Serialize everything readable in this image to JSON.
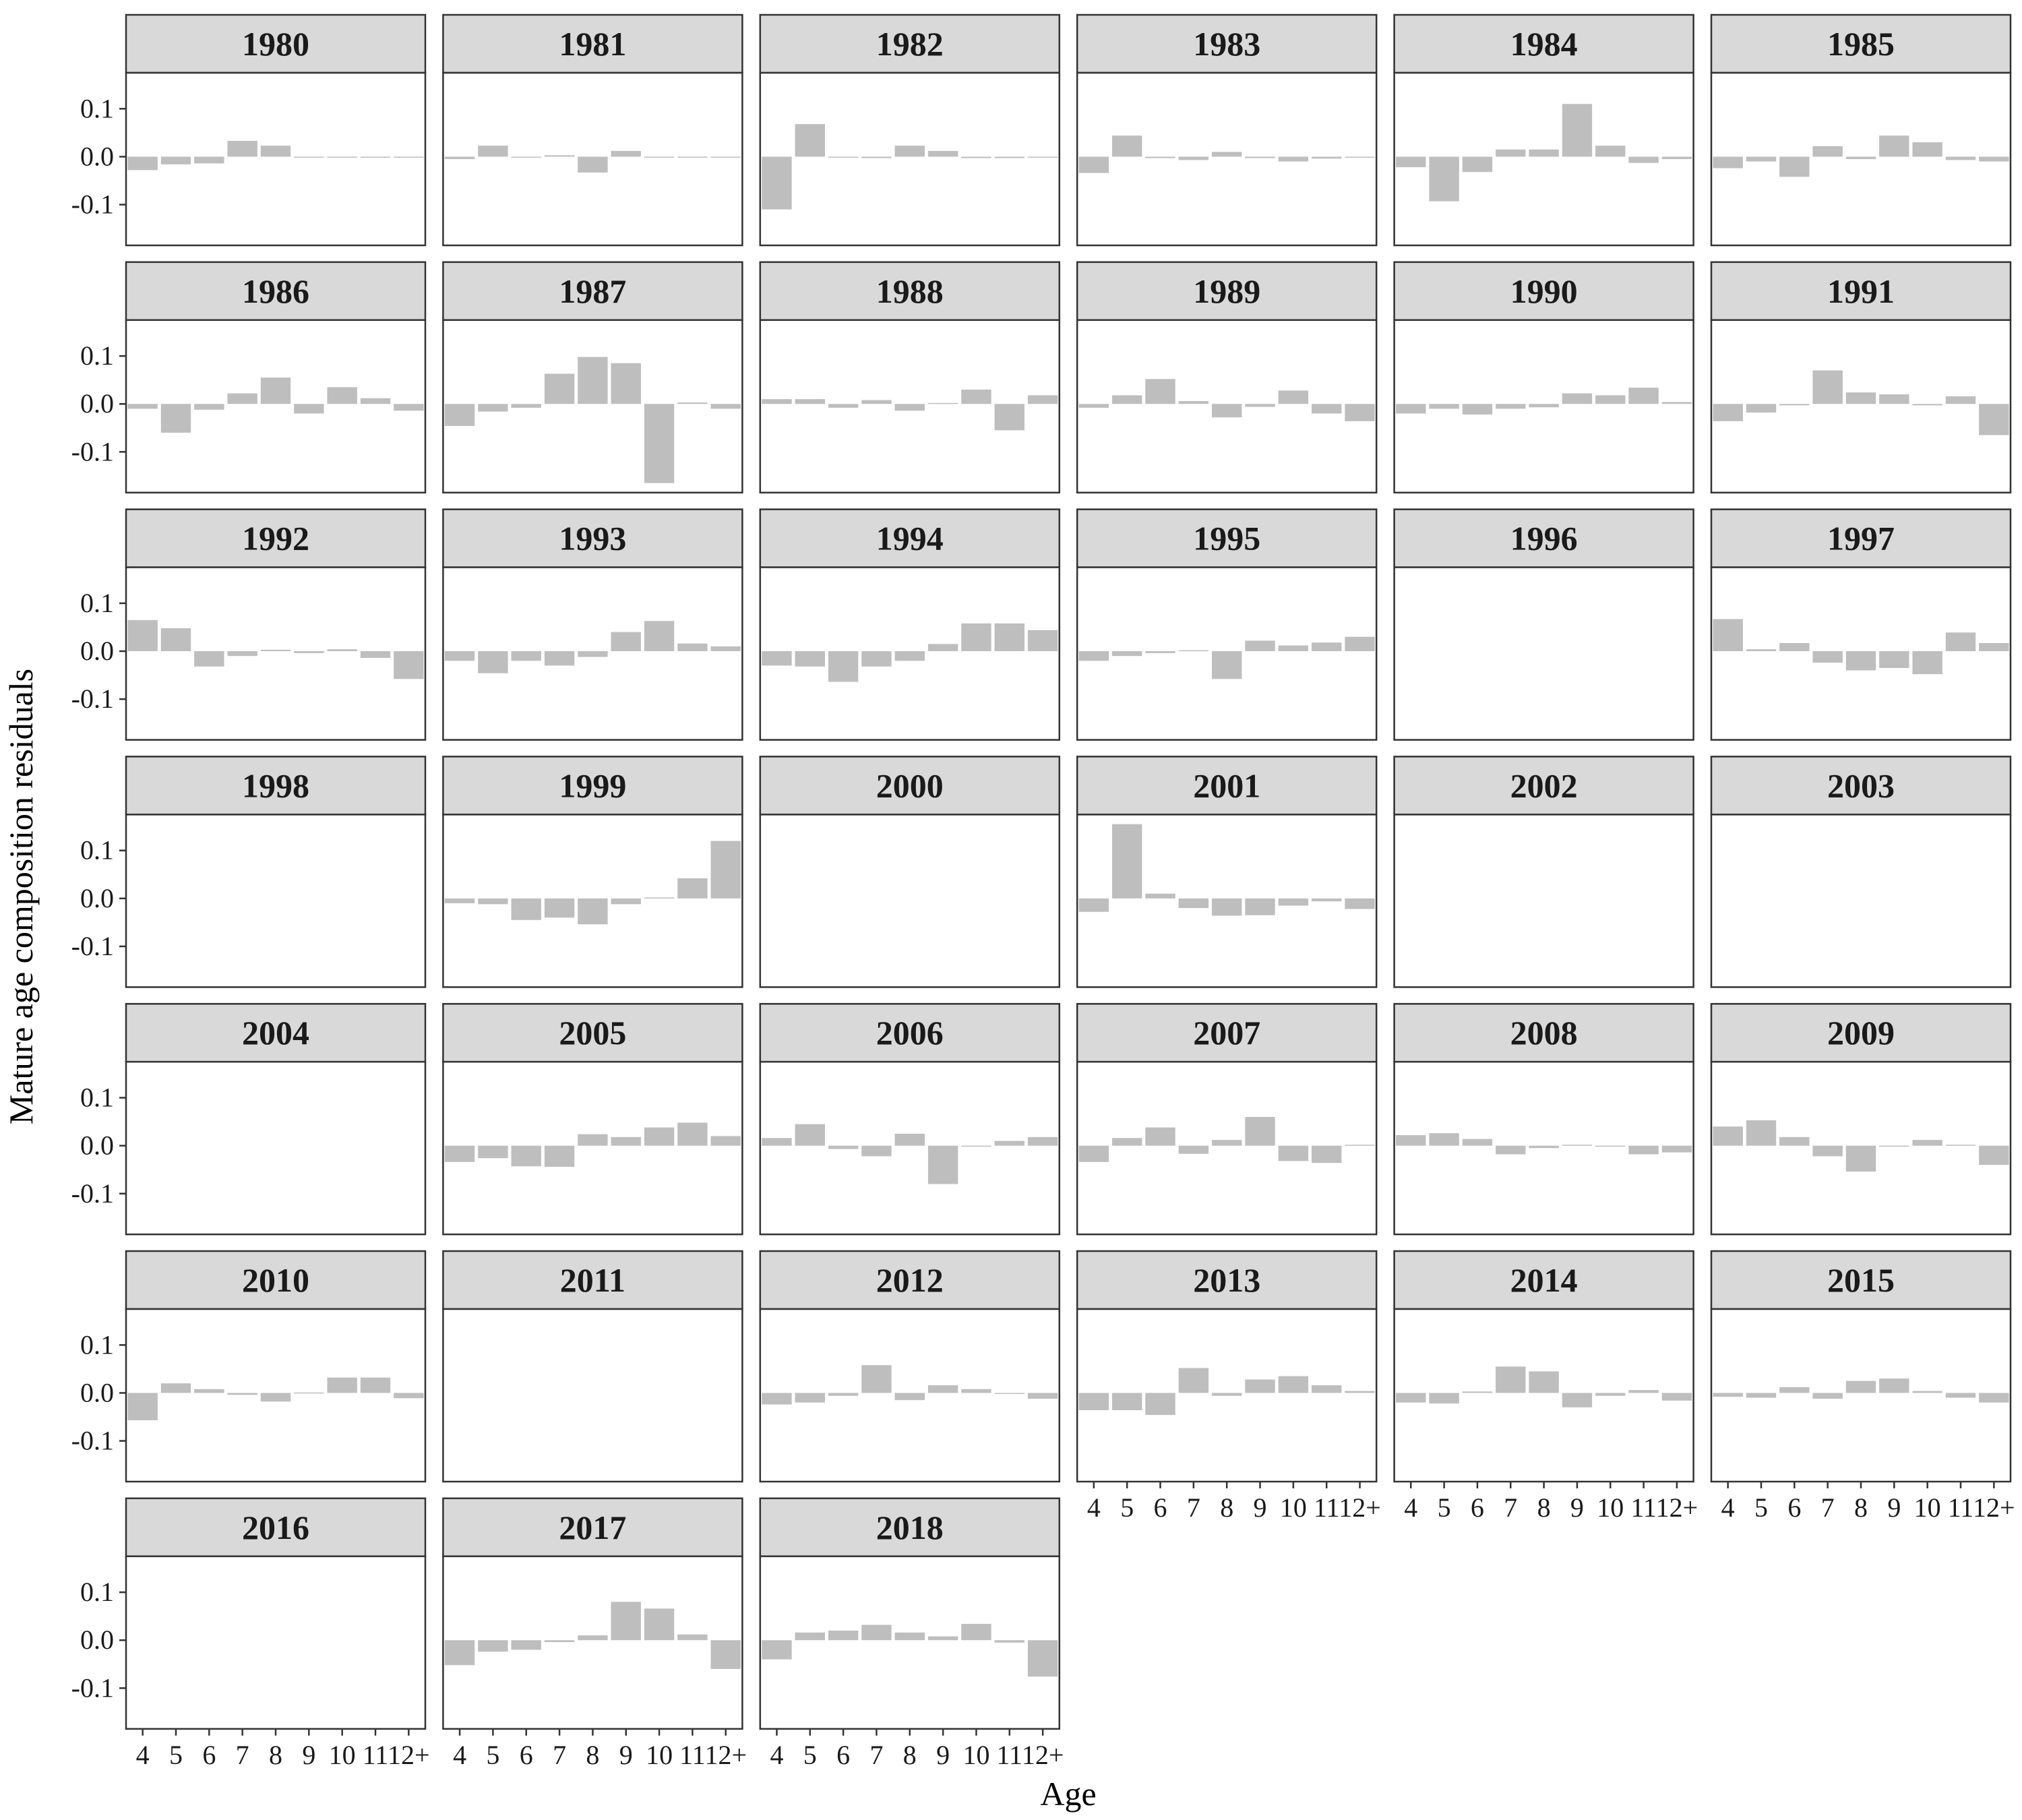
{
  "chart_data": {
    "type": "bar",
    "layout": "faceted",
    "facet_by": "year",
    "xlabel": "Age",
    "ylabel": "Mature age composition residuals",
    "categories": [
      "4",
      "5",
      "6",
      "7",
      "8",
      "9",
      "10",
      "11",
      "12+"
    ],
    "yticks": [
      0.1,
      0.0,
      -0.1
    ],
    "ytick_labels": [
      "0.1",
      "0.0",
      "-0.1"
    ],
    "ylim": [
      -0.185,
      0.175
    ],
    "bar_color": "#bebebe",
    "strip_color": "#d9d9d9",
    "panels": [
      {
        "year": "1980",
        "values": [
          -0.028,
          -0.016,
          -0.014,
          0.033,
          0.023,
          0,
          -0.002,
          0,
          -0.002
        ]
      },
      {
        "year": "1981",
        "values": [
          -0.005,
          0.023,
          0,
          0.003,
          -0.033,
          0.012,
          0,
          -0.002,
          -0.002
        ]
      },
      {
        "year": "1982",
        "values": [
          -0.11,
          0.068,
          0,
          -0.003,
          0.023,
          0.012,
          -0.003,
          -0.003,
          0
        ]
      },
      {
        "year": "1983",
        "values": [
          -0.034,
          0.044,
          -0.003,
          -0.007,
          0.01,
          -0.003,
          -0.01,
          -0.004,
          0
        ]
      },
      {
        "year": "1984",
        "values": [
          -0.022,
          -0.093,
          -0.032,
          0.015,
          0.015,
          0.11,
          0.023,
          -0.013,
          -0.005
        ]
      },
      {
        "year": "1985",
        "values": [
          -0.024,
          -0.01,
          -0.042,
          0.022,
          -0.005,
          0.044,
          0.03,
          -0.007,
          -0.01
        ]
      },
      {
        "year": "1986",
        "values": [
          -0.01,
          -0.06,
          -0.012,
          0.022,
          0.055,
          -0.02,
          0.035,
          0.012,
          -0.014
        ]
      },
      {
        "year": "1987",
        "values": [
          -0.046,
          -0.016,
          -0.008,
          0.063,
          0.098,
          0.085,
          -0.165,
          0.003,
          -0.01
        ]
      },
      {
        "year": "1988",
        "values": [
          0.01,
          0.01,
          -0.008,
          0.008,
          -0.014,
          0.002,
          0.03,
          -0.055,
          0.018
        ]
      },
      {
        "year": "1989",
        "values": [
          -0.008,
          0.018,
          0.052,
          0.006,
          -0.028,
          -0.006,
          0.028,
          -0.02,
          -0.036
        ]
      },
      {
        "year": "1990",
        "values": [
          -0.02,
          -0.01,
          -0.022,
          -0.01,
          -0.007,
          0.022,
          0.018,
          0.034,
          0.004
        ]
      },
      {
        "year": "1991",
        "values": [
          -0.036,
          -0.018,
          -0.003,
          0.07,
          0.024,
          0.02,
          -0.003,
          0.016,
          -0.065
        ]
      },
      {
        "year": "1992",
        "values": [
          0.065,
          0.048,
          -0.032,
          -0.01,
          0.003,
          -0.004,
          0.004,
          -0.014,
          -0.058
        ]
      },
      {
        "year": "1993",
        "values": [
          -0.02,
          -0.046,
          -0.02,
          -0.03,
          -0.012,
          0.04,
          0.063,
          0.016,
          0.01
        ]
      },
      {
        "year": "1994",
        "values": [
          -0.03,
          -0.032,
          -0.064,
          -0.032,
          -0.02,
          0.015,
          0.058,
          0.058,
          0.044
        ]
      },
      {
        "year": "1995",
        "values": [
          -0.02,
          -0.01,
          -0.004,
          0.002,
          -0.058,
          0.022,
          0.012,
          0.018,
          0.03
        ]
      },
      {
        "year": "1996",
        "values": []
      },
      {
        "year": "1997",
        "values": [
          0.067,
          0.004,
          0.017,
          -0.024,
          -0.04,
          -0.035,
          -0.048,
          0.039,
          0.017
        ]
      },
      {
        "year": "1998",
        "values": []
      },
      {
        "year": "1999",
        "values": [
          -0.01,
          -0.012,
          -0.045,
          -0.04,
          -0.054,
          -0.012,
          0.002,
          0.042,
          0.12
        ]
      },
      {
        "year": "2000",
        "values": []
      },
      {
        "year": "2001",
        "values": [
          -0.028,
          0.155,
          0.01,
          -0.02,
          -0.036,
          -0.035,
          -0.015,
          -0.006,
          -0.022
        ]
      },
      {
        "year": "2002",
        "values": []
      },
      {
        "year": "2003",
        "values": []
      },
      {
        "year": "2004",
        "values": []
      },
      {
        "year": "2005",
        "values": [
          -0.034,
          -0.026,
          -0.043,
          -0.044,
          0.024,
          0.018,
          0.038,
          0.048,
          0.02
        ]
      },
      {
        "year": "2006",
        "values": [
          0.016,
          0.045,
          -0.007,
          -0.022,
          0.025,
          -0.08,
          -0.002,
          0.01,
          0.018
        ]
      },
      {
        "year": "2007",
        "values": [
          -0.034,
          0.016,
          0.038,
          -0.017,
          0.012,
          0.06,
          -0.032,
          -0.036,
          0.002
        ]
      },
      {
        "year": "2008",
        "values": [
          0.022,
          0.026,
          0.014,
          -0.018,
          -0.005,
          0.002,
          -0.002,
          -0.018,
          -0.014
        ]
      },
      {
        "year": "2009",
        "values": [
          0.04,
          0.053,
          0.018,
          -0.022,
          -0.054,
          0,
          0.012,
          0.002,
          -0.04
        ]
      },
      {
        "year": "2010",
        "values": [
          -0.057,
          0.02,
          0.008,
          -0.004,
          -0.018,
          0.001,
          0.032,
          0.032,
          -0.011
        ]
      },
      {
        "year": "2011",
        "values": []
      },
      {
        "year": "2012",
        "values": [
          -0.024,
          -0.02,
          -0.006,
          0.058,
          -0.015,
          0.016,
          0.008,
          0,
          -0.012
        ]
      },
      {
        "year": "2013",
        "values": [
          -0.036,
          -0.036,
          -0.046,
          0.052,
          -0.006,
          0.028,
          0.035,
          0.016,
          0.004
        ]
      },
      {
        "year": "2014",
        "values": [
          -0.02,
          -0.022,
          0.003,
          0.055,
          0.045,
          -0.03,
          -0.006,
          0.006,
          -0.016
        ]
      },
      {
        "year": "2015",
        "values": [
          -0.008,
          -0.01,
          0.012,
          -0.012,
          0.025,
          0.03,
          0.004,
          -0.01,
          -0.02
        ]
      },
      {
        "year": "2016",
        "values": []
      },
      {
        "year": "2017",
        "values": [
          -0.052,
          -0.024,
          -0.02,
          -0.004,
          0.01,
          0.08,
          0.066,
          0.012,
          -0.06
        ]
      },
      {
        "year": "2018",
        "values": [
          -0.04,
          0.016,
          0.02,
          0.032,
          0.016,
          0.008,
          0.034,
          -0.005,
          -0.076
        ]
      }
    ]
  }
}
